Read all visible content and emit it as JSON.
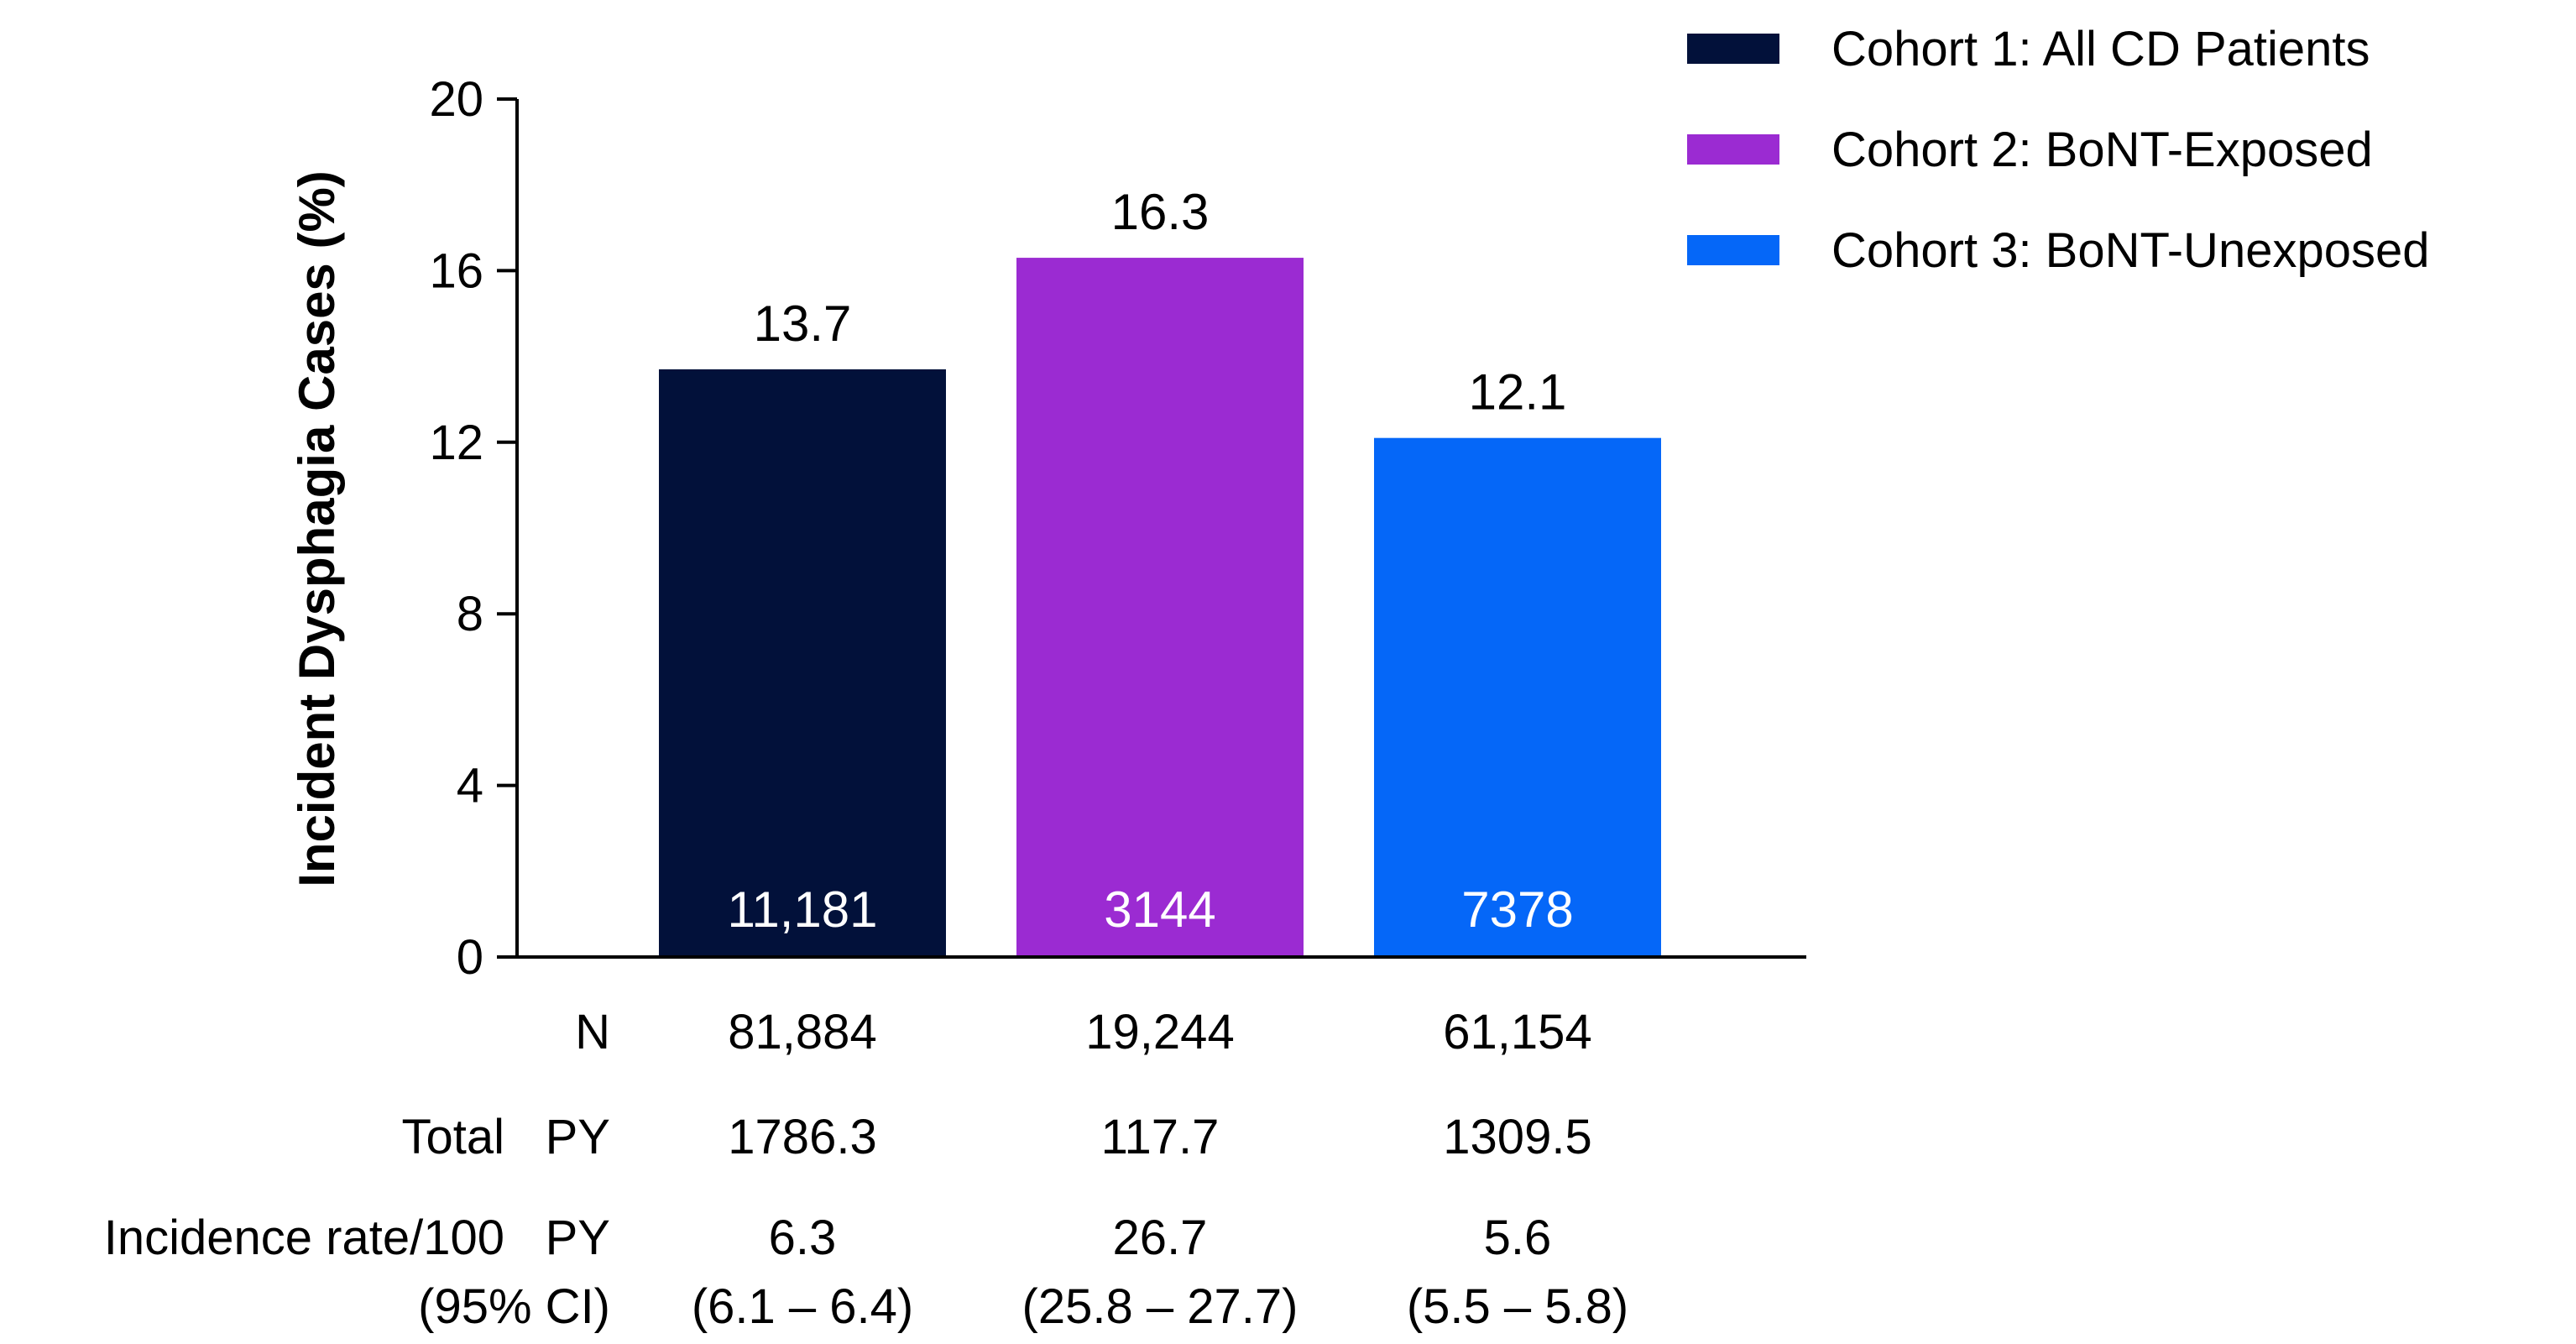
{
  "chart_data": {
    "type": "bar",
    "ylabel": "Incident Dysphagia Cases (%)",
    "xlabel": "",
    "ylim": [
      0,
      20
    ],
    "yticks": [
      0,
      4,
      8,
      12,
      16,
      20
    ],
    "grid": false,
    "legend_position": "top-right",
    "categories": [
      "Cohort 1: All CD Patients",
      "Cohort 2: BoNT-Exposed",
      "Cohort 3: BoNT-Unexposed"
    ],
    "series": [
      {
        "name": "Cohort 1: All CD Patients",
        "value": 13.7,
        "value_label": "13.7",
        "inner_label": "11,181",
        "color": "#02113a"
      },
      {
        "name": "Cohort 2: BoNT-Exposed",
        "value": 16.3,
        "value_label": "16.3",
        "inner_label": "3144",
        "color": "#9b2bd2"
      },
      {
        "name": "Cohort 3: BoNT-Unexposed",
        "value": 12.1,
        "value_label": "12.1",
        "inner_label": "7378",
        "color": "#0567f8"
      }
    ],
    "table": {
      "n_label": "N",
      "n_values": [
        "81,884",
        "19,244",
        "61,154"
      ],
      "total_label": "Total",
      "py_label": "PY",
      "total_values": [
        "1786.3",
        "117.7",
        "1309.5"
      ],
      "rate_label": "Incidence rate/100",
      "rate_py_label": "PY",
      "rate_values": [
        "6.3",
        "26.7",
        "5.6"
      ],
      "ci_label": "(95% CI)",
      "ci_values": [
        "(6.1 – 6.4)",
        "(25.8 – 27.7)",
        "(5.5 – 5.8)"
      ]
    }
  }
}
